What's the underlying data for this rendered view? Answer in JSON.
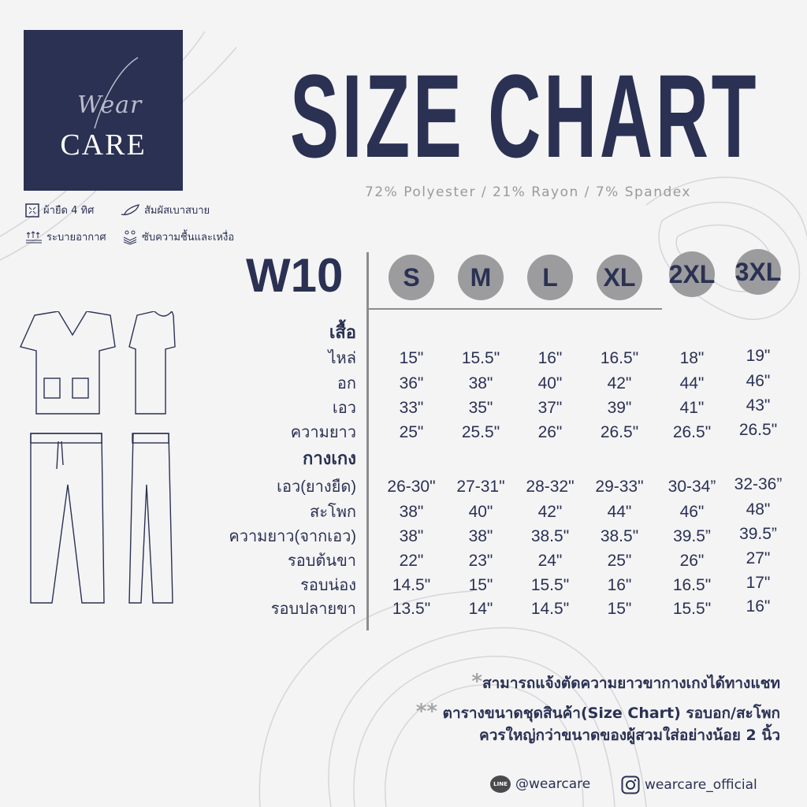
{
  "brand": {
    "logo_top": "Wear",
    "logo_bottom": "CARE"
  },
  "features": [
    {
      "icon": "stretch-icon",
      "label": "ผ้ายืด 4 ทิศ"
    },
    {
      "icon": "feather-icon",
      "label": "สัมผัสเบาสบาย"
    },
    {
      "icon": "breathable-icon",
      "label": "ระบายอากาศ"
    },
    {
      "icon": "moisture-icon",
      "label": "ซับความชื้นและเหงื่อ"
    }
  ],
  "title": "SIZE CHART",
  "subtitle": "72% Polyester / 21% Rayon / 7% Spandex",
  "model": "W10",
  "sizes": [
    "S",
    "M",
    "L",
    "XL",
    "2XL",
    "3XL"
  ],
  "table": {
    "top": {
      "title": "เสื้อ",
      "rows": [
        {
          "label": "ไหล่",
          "values": [
            "15\"",
            "15.5\"",
            "16\"",
            "16.5\"",
            "18\"",
            "19\""
          ]
        },
        {
          "label": "อก",
          "values": [
            "36\"",
            "38\"",
            "40\"",
            "42\"",
            "44\"",
            "46\""
          ]
        },
        {
          "label": "เอว",
          "values": [
            "33\"",
            "35\"",
            "37\"",
            "39\"",
            "41\"",
            "43\""
          ]
        },
        {
          "label": "ความยาว",
          "values": [
            "25\"",
            "25.5\"",
            "26\"",
            "26.5\"",
            "26.5\"",
            "26.5\""
          ]
        }
      ]
    },
    "bottom": {
      "title": "กางเกง",
      "rows": [
        {
          "label": "เอว(ยางยืด)",
          "values": [
            "26-30\"",
            "27-31\"",
            "28-32\"",
            "29-33\"",
            "30-34”",
            "32-36”"
          ]
        },
        {
          "label": "สะโพก",
          "values": [
            "38\"",
            "40\"",
            "42\"",
            "44\"",
            "46\"",
            "48\""
          ]
        },
        {
          "label": "ความยาว(จากเอว)",
          "values": [
            "38\"",
            "38\"",
            "38.5\"",
            "38.5\"",
            "39.5”",
            "39.5”"
          ]
        },
        {
          "label": "รอบต้นขา",
          "values": [
            "22\"",
            "23\"",
            "24\"",
            "25\"",
            "26\"",
            "27\""
          ]
        },
        {
          "label": "รอบน่อง",
          "values": [
            "14.5\"",
            "15\"",
            "15.5\"",
            "16\"",
            "16.5\"",
            "17\""
          ]
        },
        {
          "label": "รอบปลายขา",
          "values": [
            "13.5\"",
            "14\"",
            "14.5\"",
            "15\"",
            "15.5\"",
            "16\""
          ]
        }
      ]
    }
  },
  "notes": {
    "note1_mark": "*",
    "note1": "สามารถแจ้งตัดความยาวขากางเกงได้ทางแชท",
    "note2_mark": "**",
    "note2_line1": "ตารางขนาดชุดสินค้า(Size Chart) รอบอก/สะโพก",
    "note2_line2": "ควรใหญ่กว่าขนาดของผู้สวมใส่อย่างน้อย 2 นิ้ว"
  },
  "social": {
    "line_icon_text": "LINE",
    "line": "@wearcare",
    "instagram": "wearcare_official"
  },
  "colors": {
    "navy": "#2b3153",
    "bubble": "#9c9c9e",
    "muted": "#9a9a9c",
    "background": "#f4f4f5"
  }
}
